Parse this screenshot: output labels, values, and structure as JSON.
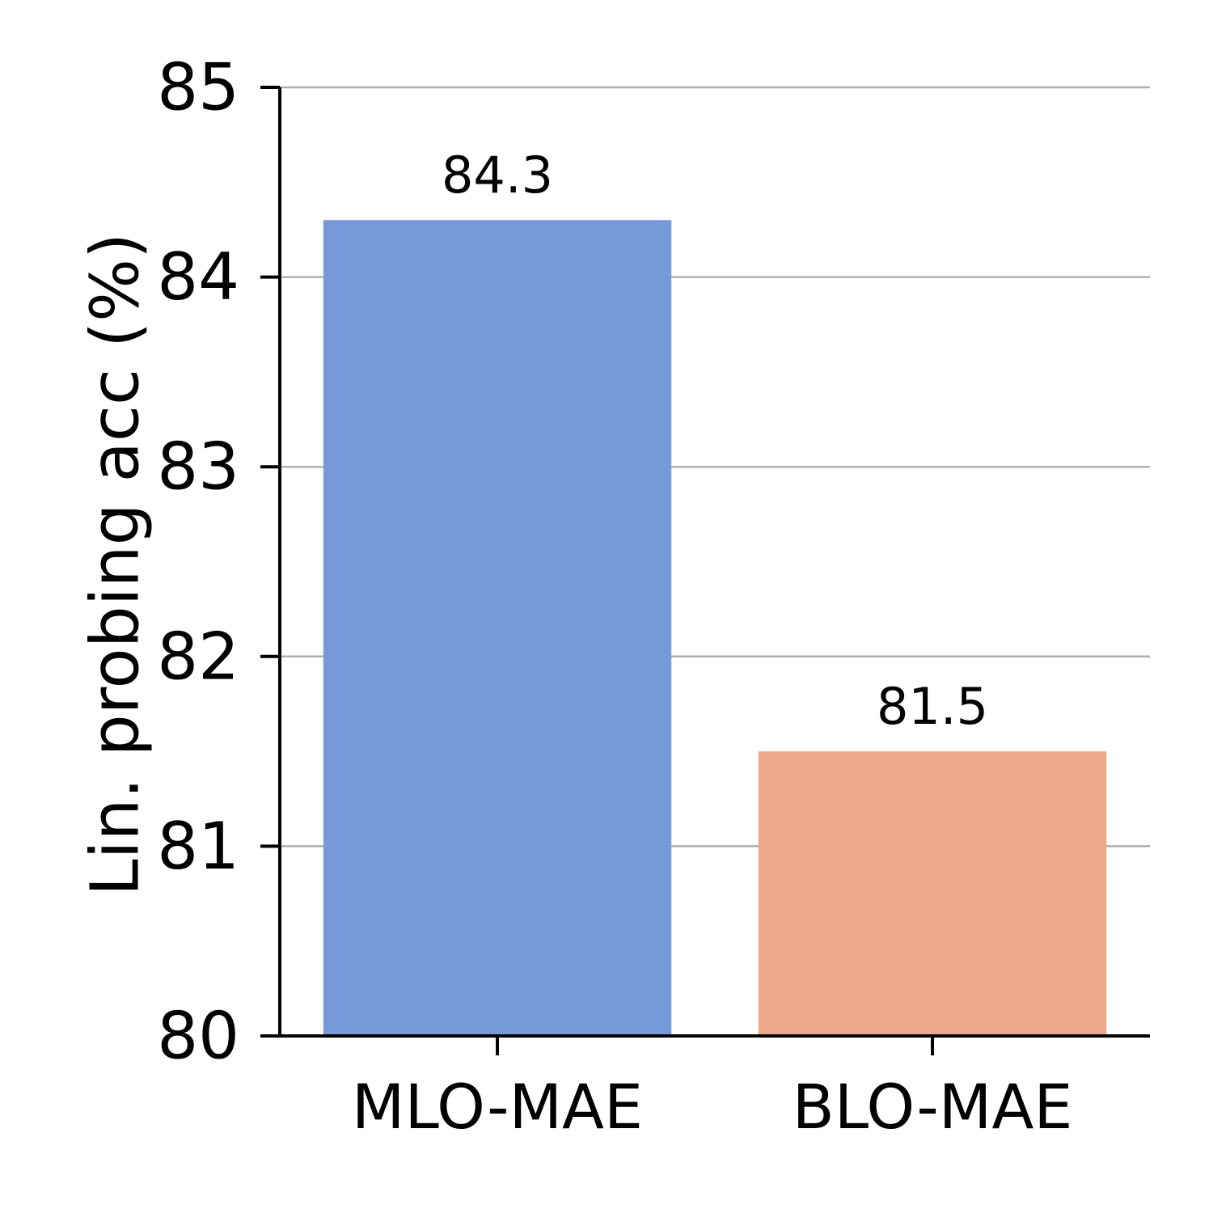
{
  "chart_data": {
    "type": "bar",
    "categories": [
      "MLO-MAE",
      "BLO-MAE"
    ],
    "values": [
      84.3,
      81.5
    ],
    "data_labels": [
      "84.3",
      "81.5"
    ],
    "colors": [
      "#769AD9",
      "#EDA78B"
    ],
    "title": "",
    "xlabel": "",
    "ylabel": "Lin. probing acc (%)",
    "ylim": [
      80,
      85
    ],
    "yticks": [
      80,
      81,
      82,
      83,
      84,
      85
    ],
    "ytick_labels": [
      "80",
      "81",
      "82",
      "83",
      "84",
      "85"
    ],
    "grid": "horizontal",
    "grid_color": "#b0b0b0",
    "legend": "none"
  }
}
